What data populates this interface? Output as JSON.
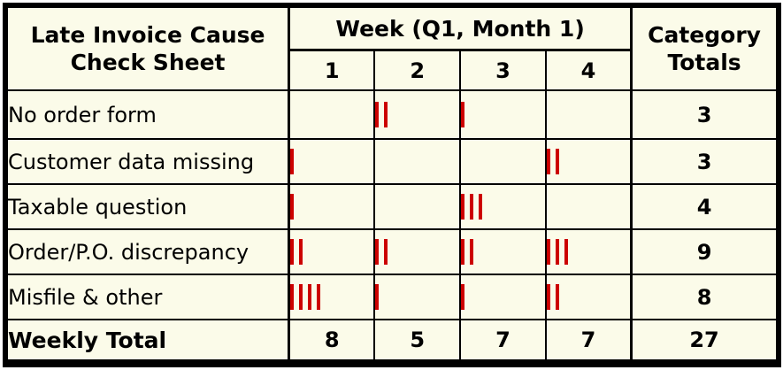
{
  "sheet": {
    "title_lines": [
      "Late Invoice Cause",
      "Check Sheet"
    ],
    "week_header": "Week (Q1, Month 1)",
    "week_labels": [
      "1",
      "2",
      "3",
      "4"
    ],
    "totals_header_lines": [
      "Category",
      "Totals"
    ],
    "rows": [
      {
        "label": "No order form",
        "tallies": [
          0,
          2,
          1,
          0
        ],
        "total": "3"
      },
      {
        "label": "Customer data missing",
        "tallies": [
          1,
          0,
          0,
          2
        ],
        "total": "3"
      },
      {
        "label": "Taxable question",
        "tallies": [
          1,
          0,
          3,
          0
        ],
        "total": "4"
      },
      {
        "label": "Order/P.O. discrepancy",
        "tallies": [
          2,
          2,
          2,
          3
        ],
        "total": "9"
      },
      {
        "label": "Misfile & other",
        "tallies": [
          4,
          1,
          1,
          2
        ],
        "total": "8"
      }
    ],
    "weekly_total": {
      "label": "Weekly Total",
      "values": [
        "8",
        "5",
        "7",
        "7"
      ],
      "grand_total": "27"
    }
  },
  "colors": {
    "background": "#fbfbe9",
    "border": "#000000",
    "text": "#000000",
    "tally": "#cc0000"
  },
  "chart_data": {
    "type": "table",
    "title": "Late Invoice Cause Check Sheet",
    "columns": [
      "Cause",
      "Week 1",
      "Week 2",
      "Week 3",
      "Week 4",
      "Category Totals"
    ],
    "rows": [
      [
        "No order form",
        0,
        2,
        1,
        0,
        3
      ],
      [
        "Customer data missing",
        1,
        0,
        0,
        2,
        3
      ],
      [
        "Taxable question",
        1,
        0,
        3,
        0,
        4
      ],
      [
        "Order/P.O. discrepancy",
        2,
        2,
        2,
        3,
        9
      ],
      [
        "Misfile & other",
        4,
        1,
        1,
        2,
        8
      ],
      [
        "Weekly Total",
        8,
        5,
        7,
        7,
        27
      ]
    ],
    "notes": "Tally-mark check sheet; week columns show tally counts for Q1 Month 1"
  }
}
